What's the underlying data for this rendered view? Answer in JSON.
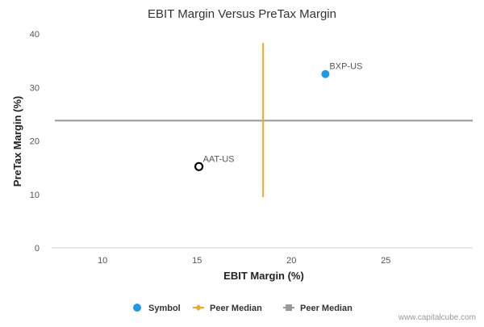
{
  "chart_data": {
    "type": "scatter",
    "title": "EBIT Margin Versus PreTax Margin",
    "xlabel": "EBIT Margin (%)",
    "ylabel": "PreTax Margin (%)",
    "xlim": [
      7.3,
      29.6
    ],
    "ylim": [
      0,
      40
    ],
    "xticks": [
      10,
      15,
      20,
      25
    ],
    "yticks": [
      0,
      10,
      20,
      30,
      40
    ],
    "grid": false,
    "points": [
      {
        "label": "BXP-US",
        "x": 21.8,
        "y": 32.5,
        "color": "#1a9be8",
        "style": "filled"
      },
      {
        "label": "AAT-US",
        "x": 15.1,
        "y": 15.2,
        "color": "#000000",
        "style": "hollow"
      }
    ],
    "peer_median_x": {
      "value": 18.5,
      "y_range": [
        9.5,
        38.3
      ],
      "color": "#f5a623"
    },
    "peer_median_y": {
      "value": 23.8,
      "color": "#999999"
    },
    "legend": {
      "placement": "bottom",
      "items": [
        {
          "label": "Symbol",
          "marker": "circle",
          "color": "#1a9be8"
        },
        {
          "label": "Peer Median",
          "marker": "line-diamond",
          "color": "#f5a623"
        },
        {
          "label": "Peer Median",
          "marker": "line-square",
          "color": "#999999"
        }
      ]
    },
    "credit": "www.capitalcube.com"
  }
}
